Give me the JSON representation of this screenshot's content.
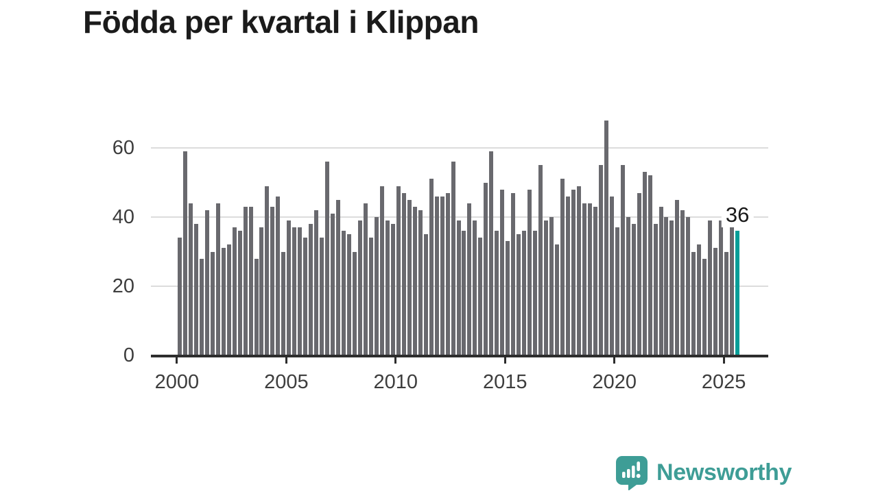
{
  "title": "Födda per kvartal i Klippan",
  "annotation": {
    "latest_value": "36"
  },
  "chart_data": {
    "type": "bar",
    "title": "Födda per kvartal i Klippan",
    "x_start": "2000-Q1",
    "x_end": "2025-Q3",
    "quarters_per_year": 4,
    "values": [
      34,
      59,
      44,
      38,
      28,
      42,
      30,
      44,
      31,
      32,
      37,
      36,
      43,
      43,
      28,
      37,
      49,
      43,
      46,
      30,
      39,
      37,
      37,
      34,
      38,
      42,
      34,
      56,
      41,
      45,
      36,
      35,
      30,
      39,
      44,
      34,
      40,
      49,
      39,
      38,
      49,
      47,
      45,
      43,
      42,
      35,
      51,
      46,
      46,
      47,
      56,
      39,
      36,
      44,
      39,
      34,
      50,
      59,
      36,
      48,
      33,
      47,
      35,
      36,
      48,
      36,
      55,
      39,
      40,
      32,
      51,
      46,
      48,
      49,
      44,
      44,
      43,
      55,
      68,
      46,
      37,
      55,
      40,
      38,
      47,
      53,
      52,
      38,
      43,
      40,
      39,
      45,
      42,
      40,
      30,
      32,
      28,
      39,
      31,
      39,
      30,
      38,
      36
    ],
    "highlight_index": 102,
    "highlight_value": 36,
    "yticks": [
      0,
      20,
      40,
      60
    ],
    "xticks": [
      "2000",
      "2005",
      "2010",
      "2015",
      "2020",
      "2025"
    ],
    "ylim": [
      0,
      70
    ],
    "grid": true,
    "legend": "none",
    "bar_color": "#69696e",
    "highlight_color": "#069e98",
    "grid_color": "#dcdcdc",
    "axis_color": "#2d2d2d"
  },
  "branding": {
    "logo_text": "Newsworthy",
    "logo_color": "#3e9d96"
  }
}
